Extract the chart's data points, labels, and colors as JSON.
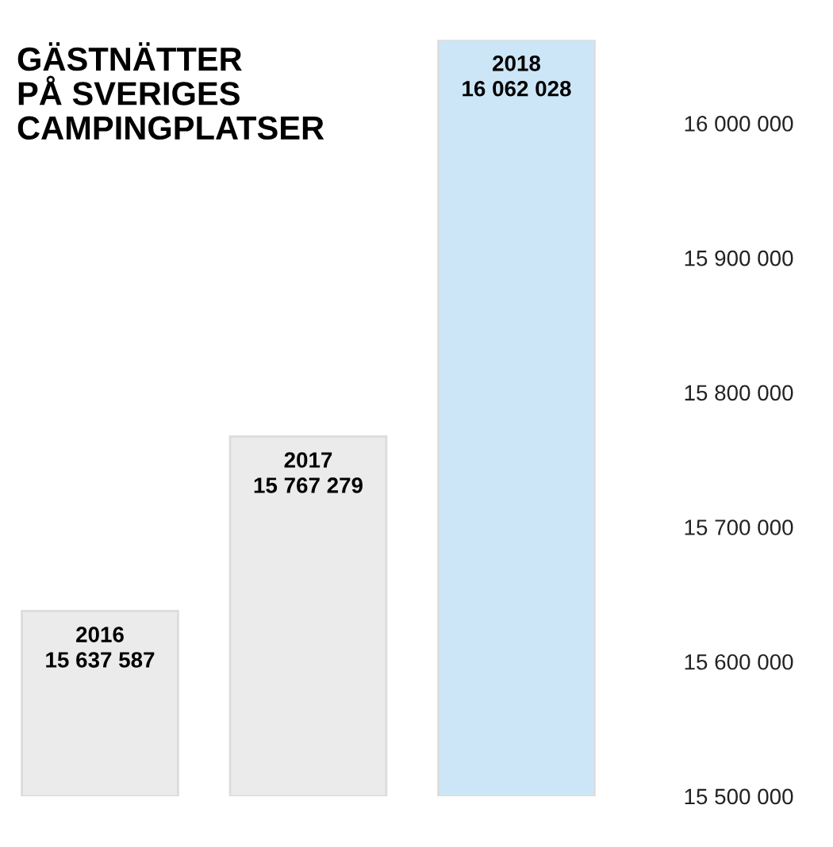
{
  "chart_data": {
    "type": "bar",
    "title": "GÄSTNÄTTER\nPÅ SVERIGES\nCAMPINGPLATSER",
    "categories": [
      "2016",
      "2017",
      "2018"
    ],
    "values": [
      15637587,
      15767279,
      16062028
    ],
    "colors": [
      "#ebebeb",
      "#ebebeb",
      "#cce6f7"
    ],
    "data_labels": true,
    "grid": false,
    "ylim": [
      15500000,
      16062028
    ],
    "yticks": [
      {
        "value": 15500000,
        "label": "15 500 000"
      },
      {
        "value": 15600000,
        "label": "15 600 000"
      },
      {
        "value": 15700000,
        "label": "15 700 000"
      },
      {
        "value": 15800000,
        "label": "15 800 000"
      },
      {
        "value": 15900000,
        "label": "15 900 000"
      },
      {
        "value": 16000000,
        "label": "16 000 000"
      }
    ]
  }
}
